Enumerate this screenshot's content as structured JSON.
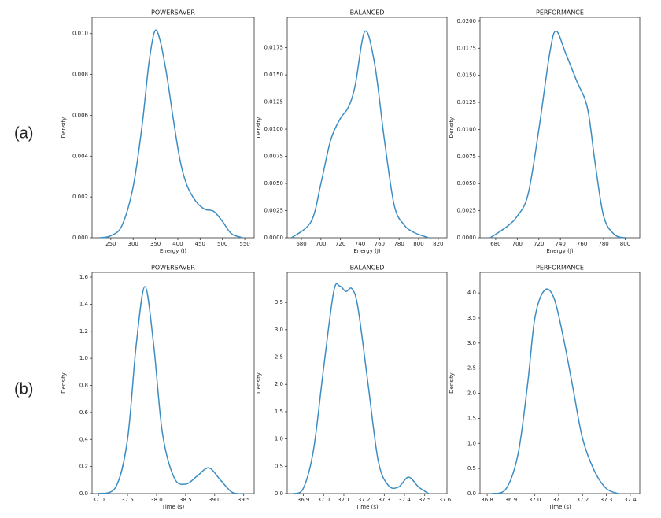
{
  "row_labels": [
    "(a)",
    "(b)"
  ],
  "chart_data": [
    {
      "type": "line",
      "title": "POWERSAVER",
      "xlabel": "Energy (J)",
      "ylabel": "Density",
      "color": "#3c8dc2",
      "x": [
        225,
        250,
        275,
        300,
        320,
        335,
        348,
        360,
        375,
        390,
        405,
        420,
        440,
        460,
        480,
        500,
        520,
        545
      ],
      "values": [
        0,
        0.0001,
        0.0006,
        0.0025,
        0.0055,
        0.0085,
        0.0101,
        0.0097,
        0.008,
        0.0058,
        0.0038,
        0.0026,
        0.0018,
        0.0014,
        0.0013,
        0.0008,
        0.0002,
        0
      ],
      "xlim": [
        208,
        571
      ],
      "ylim": [
        0,
        0.0108
      ],
      "xticks": [
        250,
        300,
        350,
        400,
        450,
        500,
        550
      ],
      "yticks": [
        {
          "value": 0,
          "label": "0.000"
        },
        {
          "value": 0.002,
          "label": "0.002"
        },
        {
          "value": 0.004,
          "label": "0.004"
        },
        {
          "value": 0.006,
          "label": "0.006"
        },
        {
          "value": 0.008,
          "label": "0.008"
        },
        {
          "value": 0.01,
          "label": "0.010"
        }
      ]
    },
    {
      "type": "line",
      "title": "BALANCED",
      "xlabel": "Energy (J)",
      "ylabel": "Density",
      "color": "#3c8dc2",
      "x": [
        670,
        690,
        700,
        710,
        720,
        728,
        735,
        745,
        755,
        765,
        775,
        785,
        795,
        810
      ],
      "values": [
        0,
        0.0015,
        0.005,
        0.009,
        0.011,
        0.012,
        0.014,
        0.019,
        0.016,
        0.009,
        0.003,
        0.0012,
        0.0005,
        0
      ],
      "xlim": [
        665.5,
        829
      ],
      "ylim": [
        0,
        0.0203
      ],
      "xticks": [
        680,
        700,
        720,
        740,
        760,
        780,
        800,
        820
      ],
      "yticks": [
        {
          "value": 0,
          "label": "0.0000"
        },
        {
          "value": 0.0025,
          "label": "0.0025"
        },
        {
          "value": 0.005,
          "label": "0.0050"
        },
        {
          "value": 0.0075,
          "label": "0.0075"
        },
        {
          "value": 0.01,
          "label": "0.0100"
        },
        {
          "value": 0.0125,
          "label": "0.0125"
        },
        {
          "value": 0.015,
          "label": "0.0150"
        },
        {
          "value": 0.0175,
          "label": "0.0175"
        }
      ]
    },
    {
      "type": "line",
      "title": "PERFORMANCE",
      "xlabel": "Energy (J)",
      "ylabel": "Density",
      "color": "#3c8dc2",
      "x": [
        675,
        690,
        700,
        710,
        720,
        730,
        736,
        745,
        755,
        765,
        772,
        780,
        790,
        800
      ],
      "values": [
        0,
        0.001,
        0.002,
        0.004,
        0.01,
        0.017,
        0.0191,
        0.017,
        0.0145,
        0.012,
        0.007,
        0.002,
        0.0003,
        0
      ],
      "xlim": [
        665.5,
        813.5
      ],
      "ylim": [
        0,
        0.02036
      ],
      "xticks": [
        680,
        700,
        720,
        740,
        760,
        780,
        800
      ],
      "yticks": [
        {
          "value": 0,
          "label": "0.0000"
        },
        {
          "value": 0.0025,
          "label": "0.0025"
        },
        {
          "value": 0.005,
          "label": "0.0050"
        },
        {
          "value": 0.0075,
          "label": "0.0075"
        },
        {
          "value": 0.01,
          "label": "0.0100"
        },
        {
          "value": 0.0125,
          "label": "0.0125"
        },
        {
          "value": 0.015,
          "label": "0.0150"
        },
        {
          "value": 0.0175,
          "label": "0.0175"
        },
        {
          "value": 0.02,
          "label": "0.0200"
        }
      ]
    },
    {
      "type": "line",
      "title": "POWERSAVER",
      "xlabel": "Time (s)",
      "ylabel": "Density",
      "color": "#3c8dc2",
      "x": [
        37.0,
        37.3,
        37.5,
        37.65,
        37.8,
        37.95,
        38.1,
        38.3,
        38.5,
        38.7,
        38.9,
        39.1,
        39.3,
        39.5
      ],
      "values": [
        0,
        0.05,
        0.4,
        1.1,
        1.53,
        1.1,
        0.45,
        0.12,
        0.07,
        0.13,
        0.19,
        0.1,
        0.01,
        0
      ],
      "xlim": [
        36.89,
        39.68
      ],
      "ylim": [
        0,
        1.635
      ],
      "xticks": [
        {
          "value": 37,
          "label": "37.0"
        },
        37.5,
        {
          "value": 38,
          "label": "38.0"
        },
        38.5,
        {
          "value": 39,
          "label": "39.0"
        },
        39.5
      ],
      "yticks": [
        {
          "value": 0,
          "label": "0.0"
        },
        0.2,
        0.4,
        0.6,
        0.8,
        {
          "value": 1,
          "label": "1.0"
        },
        1.2,
        1.4,
        1.6
      ]
    },
    {
      "type": "line",
      "title": "BALANCED",
      "xlabel": "Time (s)",
      "ylabel": "Density",
      "color": "#3c8dc2",
      "x": [
        36.85,
        36.9,
        36.95,
        37.0,
        37.05,
        37.08,
        37.11,
        37.14,
        37.17,
        37.22,
        37.27,
        37.32,
        37.37,
        37.42,
        37.47,
        37.52
      ],
      "values": [
        0,
        0.1,
        0.8,
        2.3,
        3.7,
        3.8,
        3.7,
        3.75,
        3.4,
        2.0,
        0.6,
        0.15,
        0.12,
        0.3,
        0.12,
        0
      ],
      "xlim": [
        36.82,
        37.61
      ],
      "ylim": [
        0,
        4.05
      ],
      "xticks": [
        36.9,
        {
          "value": 37,
          "label": "37.0"
        },
        37.1,
        37.2,
        37.3,
        37.4,
        37.5,
        37.6
      ],
      "yticks": [
        {
          "value": 0,
          "label": "0.0"
        },
        0.5,
        {
          "value": 1,
          "label": "1.0"
        },
        1.5,
        {
          "value": 2,
          "label": "2.0"
        },
        2.5,
        {
          "value": 3,
          "label": "3.0"
        },
        3.5
      ]
    },
    {
      "type": "line",
      "title": "PERFORMANCE",
      "xlabel": "Time (s)",
      "ylabel": "Density",
      "color": "#3c8dc2",
      "x": [
        36.82,
        36.88,
        36.93,
        36.97,
        37.0,
        37.04,
        37.08,
        37.12,
        37.16,
        37.2,
        37.25,
        37.3,
        37.35
      ],
      "values": [
        0,
        0.1,
        0.8,
        2.2,
        3.5,
        4.05,
        3.9,
        3.1,
        2.1,
        1.1,
        0.45,
        0.1,
        0
      ],
      "xlim": [
        36.77,
        37.44
      ],
      "ylim": [
        0,
        4.41
      ],
      "xticks": [
        36.8,
        36.9,
        {
          "value": 37,
          "label": "37.0"
        },
        37.1,
        37.2,
        37.3,
        37.4
      ],
      "yticks": [
        {
          "value": 0,
          "label": "0.0"
        },
        0.5,
        {
          "value": 1,
          "label": "1.0"
        },
        1.5,
        {
          "value": 2,
          "label": "2.0"
        },
        2.5,
        {
          "value": 3,
          "label": "3.0"
        },
        3.5,
        {
          "value": 4,
          "label": "4.0"
        }
      ]
    }
  ]
}
